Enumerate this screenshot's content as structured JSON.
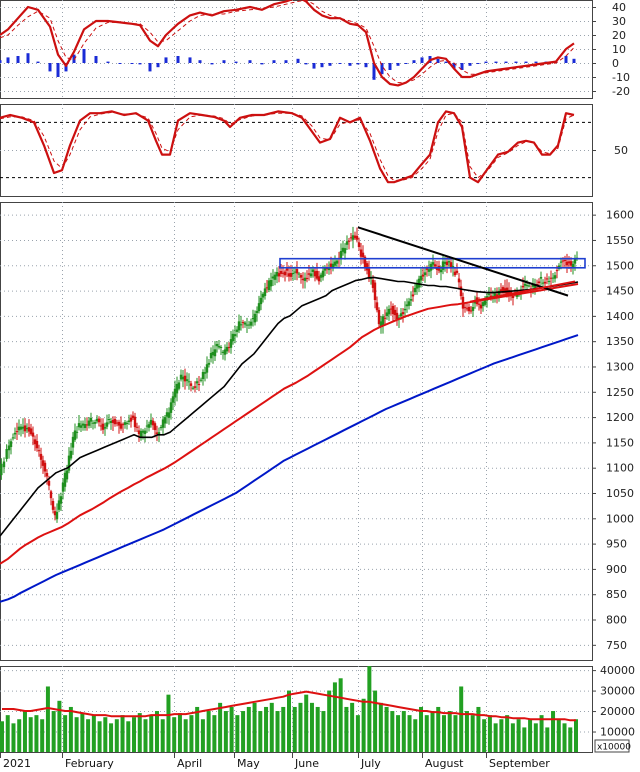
{
  "colors": {
    "background": "#ffffff",
    "grid": "#9aa3ad",
    "candle_up": "#1f8f1f",
    "candle_down": "#d01010",
    "ma_black": "#000000",
    "ma_red": "#dd1111",
    "ma_blue": "#0018c8",
    "resistance_box": "#1f3fd0",
    "trendline": "#000000",
    "volume_bar": "#22a022",
    "histogram": "#1a2bd6",
    "osc_line": "#cc1010"
  },
  "chart_data": [
    {
      "panel": "macd",
      "type": "line",
      "grid": true,
      "y_ticks": [
        "40",
        "30",
        "20",
        "10",
        "0",
        "-10",
        "-20"
      ],
      "ylim": [
        -25,
        45
      ],
      "x": [
        0,
        8,
        18,
        28,
        38,
        50,
        58,
        66,
        74,
        84,
        96,
        108,
        120,
        132,
        140,
        150,
        158,
        166,
        178,
        190,
        200,
        212,
        224,
        236,
        250,
        262,
        274,
        286,
        298,
        306,
        314,
        322,
        330,
        340,
        350,
        358,
        366,
        374,
        382,
        390,
        398,
        406,
        414,
        422,
        430,
        438,
        446,
        454,
        462,
        470,
        478,
        486,
        496,
        506,
        516,
        526,
        536,
        546,
        556,
        566,
        574
      ],
      "macd": [
        20,
        24,
        32,
        40,
        38,
        26,
        6,
        -2,
        8,
        24,
        30,
        30,
        29,
        28,
        27,
        16,
        12,
        20,
        28,
        34,
        36,
        34,
        37,
        38,
        40,
        38,
        42,
        44,
        47,
        44,
        38,
        34,
        32,
        32,
        28,
        27,
        22,
        0,
        -10,
        -15,
        -16,
        -14,
        -10,
        -4,
        2,
        4,
        3,
        -4,
        -10,
        -10,
        -8,
        -6,
        -5,
        -4,
        -3,
        -2,
        -1,
        0,
        1,
        10,
        14
      ],
      "signal": [
        18,
        20,
        27,
        33,
        37,
        32,
        16,
        4,
        2,
        14,
        25,
        29,
        29,
        28,
        28,
        22,
        15,
        16,
        23,
        30,
        34,
        35,
        35,
        37,
        38,
        39,
        40,
        42,
        44,
        45,
        42,
        37,
        34,
        32,
        30,
        28,
        25,
        12,
        -2,
        -10,
        -14,
        -14,
        -12,
        -8,
        -3,
        1,
        2,
        0,
        -5,
        -8,
        -8,
        -7,
        -6,
        -5,
        -4,
        -3,
        -2,
        -1,
        0,
        5,
        11
      ],
      "histogram": [
        2,
        4,
        5,
        7,
        1,
        -6,
        -10,
        -6,
        6,
        10,
        5,
        1,
        0,
        0,
        -1,
        -6,
        -3,
        4,
        5,
        4,
        2,
        -1,
        2,
        1,
        2,
        -1,
        2,
        2,
        3,
        -1,
        -4,
        -3,
        -2,
        0,
        -2,
        -1,
        -3,
        -12,
        -8,
        -5,
        -2,
        0,
        2,
        4,
        5,
        3,
        1,
        -4,
        -5,
        -2,
        0,
        1,
        1,
        1,
        1,
        1,
        1,
        1,
        1,
        5,
        3
      ]
    },
    {
      "panel": "stochastic",
      "type": "line",
      "grid": true,
      "y_ticks": [
        "50"
      ],
      "ylim": [
        0,
        100
      ],
      "reference_lines": [
        80,
        20
      ],
      "x": [
        0,
        10,
        22,
        34,
        44,
        54,
        62,
        70,
        80,
        90,
        100,
        112,
        124,
        136,
        148,
        156,
        162,
        170,
        178,
        190,
        202,
        214,
        224,
        230,
        240,
        252,
        264,
        278,
        292,
        302,
        312,
        320,
        330,
        340,
        350,
        360,
        370,
        380,
        388,
        394,
        402,
        412,
        422,
        430,
        438,
        446,
        454,
        462,
        470,
        478,
        488,
        498,
        508,
        518,
        526,
        534,
        542,
        550,
        558,
        566,
        574
      ],
      "k": [
        85,
        88,
        85,
        80,
        55,
        25,
        28,
        55,
        82,
        90,
        90,
        92,
        88,
        90,
        82,
        60,
        45,
        45,
        82,
        90,
        88,
        86,
        82,
        75,
        85,
        88,
        88,
        92,
        90,
        85,
        70,
        58,
        62,
        85,
        80,
        85,
        60,
        30,
        15,
        15,
        18,
        22,
        35,
        45,
        80,
        92,
        90,
        75,
        20,
        15,
        30,
        45,
        48,
        58,
        60,
        58,
        45,
        45,
        55,
        90,
        88
      ],
      "d": [
        84,
        86,
        86,
        82,
        65,
        38,
        30,
        45,
        72,
        86,
        89,
        91,
        89,
        89,
        85,
        68,
        52,
        48,
        72,
        86,
        88,
        87,
        84,
        78,
        83,
        87,
        88,
        90,
        90,
        87,
        76,
        63,
        61,
        78,
        81,
        83,
        68,
        40,
        22,
        17,
        17,
        20,
        30,
        40,
        70,
        88,
        90,
        80,
        32,
        20,
        28,
        42,
        47,
        55,
        59,
        58,
        48,
        46,
        52,
        84,
        88
      ]
    },
    {
      "panel": "price",
      "type": "line",
      "grid": true,
      "y_ticks": [
        "1600",
        "1550",
        "1500",
        "1450",
        "1400",
        "1350",
        "1300",
        "1250",
        "1200",
        "1150",
        "1100",
        "1050",
        "1000",
        "950",
        "900",
        "850",
        "800",
        "750"
      ],
      "ylim": [
        720,
        1625
      ],
      "x_labels": [
        "2021",
        "February",
        "April",
        "May",
        "June",
        "July",
        "August",
        "September"
      ],
      "x_label_positions": [
        0,
        62,
        174,
        234,
        292,
        358,
        422,
        486
      ],
      "close_x": [
        0,
        8,
        14,
        20,
        26,
        32,
        38,
        44,
        50,
        56,
        62,
        68,
        74,
        80,
        86,
        92,
        98,
        104,
        110,
        116,
        122,
        128,
        134,
        140,
        146,
        152,
        158,
        164,
        170,
        176,
        182,
        188,
        194,
        200,
        206,
        212,
        218,
        224,
        230,
        236,
        242,
        248,
        254,
        260,
        266,
        272,
        278,
        284,
        290,
        296,
        302,
        308,
        314,
        320,
        326,
        332,
        338,
        344,
        350,
        356,
        362,
        368,
        374,
        380,
        386,
        392,
        398,
        404,
        410,
        416,
        422,
        428,
        434,
        440,
        446,
        452,
        458,
        464,
        470,
        476,
        482,
        488,
        494,
        500,
        506,
        512,
        518,
        524,
        530,
        536,
        542,
        548,
        554,
        560,
        566,
        572,
        578
      ],
      "close": [
        1090,
        1130,
        1165,
        1180,
        1175,
        1170,
        1140,
        1110,
        1060,
        1000,
        1050,
        1100,
        1160,
        1185,
        1180,
        1195,
        1190,
        1180,
        1195,
        1190,
        1180,
        1190,
        1200,
        1160,
        1180,
        1190,
        1170,
        1190,
        1210,
        1250,
        1280,
        1270,
        1260,
        1270,
        1290,
        1320,
        1340,
        1330,
        1340,
        1370,
        1390,
        1380,
        1390,
        1420,
        1450,
        1470,
        1480,
        1490,
        1480,
        1490,
        1470,
        1480,
        1490,
        1470,
        1490,
        1500,
        1510,
        1530,
        1550,
        1560,
        1520,
        1490,
        1460,
        1380,
        1400,
        1420,
        1390,
        1410,
        1430,
        1450,
        1480,
        1490,
        1500,
        1490,
        1510,
        1500,
        1480,
        1420,
        1410,
        1430,
        1420,
        1440,
        1440,
        1450,
        1450,
        1440,
        1440,
        1460,
        1460,
        1460,
        1470,
        1470,
        1480,
        1500,
        1510,
        1500,
        1510
      ],
      "ma_black": [
        965,
        985,
        1000,
        1015,
        1030,
        1045,
        1060,
        1070,
        1080,
        1090,
        1095,
        1100,
        1110,
        1120,
        1125,
        1130,
        1135,
        1140,
        1145,
        1150,
        1155,
        1160,
        1165,
        1160,
        1160,
        1160,
        1165,
        1165,
        1170,
        1180,
        1190,
        1200,
        1210,
        1220,
        1230,
        1240,
        1250,
        1260,
        1275,
        1290,
        1305,
        1315,
        1325,
        1340,
        1355,
        1370,
        1385,
        1395,
        1400,
        1410,
        1420,
        1425,
        1430,
        1435,
        1440,
        1450,
        1455,
        1460,
        1465,
        1470,
        1472,
        1475,
        1476,
        1474,
        1472,
        1470,
        1468,
        1468,
        1466,
        1464,
        1462,
        1460,
        1460,
        1458,
        1458,
        1456,
        1454,
        1452,
        1450,
        1448,
        1447,
        1446,
        1446,
        1447,
        1448,
        1449,
        1450,
        1451,
        1452,
        1454,
        1455,
        1457,
        1459,
        1461,
        1463,
        1465,
        1467
      ],
      "ma_red": [
        910,
        920,
        930,
        940,
        948,
        955,
        962,
        968,
        973,
        978,
        983,
        990,
        998,
        1006,
        1012,
        1018,
        1025,
        1032,
        1040,
        1047,
        1054,
        1060,
        1067,
        1073,
        1080,
        1086,
        1092,
        1098,
        1105,
        1112,
        1120,
        1128,
        1136,
        1144,
        1152,
        1160,
        1168,
        1176,
        1184,
        1192,
        1200,
        1208,
        1216,
        1224,
        1232,
        1240,
        1248,
        1256,
        1262,
        1268,
        1275,
        1282,
        1290,
        1298,
        1306,
        1314,
        1322,
        1330,
        1338,
        1348,
        1358,
        1365,
        1372,
        1378,
        1383,
        1388,
        1393,
        1398,
        1402,
        1406,
        1410,
        1414,
        1416,
        1418,
        1420,
        1422,
        1423,
        1425,
        1427,
        1429,
        1431,
        1433,
        1435,
        1437,
        1439,
        1441,
        1443,
        1445,
        1447,
        1449,
        1451,
        1453,
        1455,
        1457,
        1459,
        1461,
        1463
      ],
      "ma_blue": [
        835,
        840,
        845,
        852,
        858,
        864,
        870,
        876,
        882,
        888,
        893,
        898,
        903,
        908,
        913,
        918,
        923,
        928,
        933,
        938,
        943,
        948,
        953,
        958,
        963,
        968,
        973,
        978,
        984,
        990,
        996,
        1002,
        1008,
        1014,
        1020,
        1026,
        1032,
        1038,
        1044,
        1050,
        1058,
        1066,
        1074,
        1082,
        1090,
        1098,
        1106,
        1114,
        1120,
        1126,
        1132,
        1138,
        1144,
        1150,
        1156,
        1162,
        1168,
        1174,
        1180,
        1186,
        1192,
        1198,
        1204,
        1210,
        1216,
        1221,
        1226,
        1231,
        1236,
        1241,
        1246,
        1251,
        1256,
        1261,
        1266,
        1271,
        1276,
        1281,
        1286,
        1291,
        1296,
        1301,
        1306,
        1310,
        1314,
        1318,
        1322,
        1326,
        1330,
        1334,
        1338,
        1342,
        1346,
        1350,
        1354,
        1358,
        1362
      ],
      "resistance_box": {
        "x_start": 280,
        "x_end": 585,
        "y_low": 1495,
        "y_high": 1513
      },
      "trendlines": [
        {
          "x1": 358,
          "y1": 1575,
          "x2": 568,
          "y2": 1440
        },
        {
          "x1": 470,
          "y1": 1428,
          "x2": 575,
          "y2": 1468
        }
      ]
    },
    {
      "panel": "volume",
      "type": "bar",
      "grid": true,
      "y_ticks": [
        "40000",
        "30000",
        "20000",
        "10000"
      ],
      "ylim": [
        0,
        42000
      ],
      "unit_label": "x10000",
      "values": [
        15000,
        18000,
        14000,
        16000,
        20000,
        17000,
        18000,
        16000,
        32000,
        20000,
        25000,
        18000,
        22000,
        17000,
        19000,
        16000,
        18000,
        15000,
        17000,
        14000,
        16000,
        18000,
        15000,
        17000,
        19000,
        16000,
        18000,
        20000,
        16000,
        28000,
        17000,
        19000,
        16000,
        18000,
        22000,
        16000,
        20000,
        18000,
        24000,
        20000,
        22000,
        18000,
        20000,
        22000,
        24000,
        20000,
        22000,
        24000,
        20000,
        22000,
        30000,
        22000,
        24000,
        28000,
        24000,
        22000,
        20000,
        30000,
        34000,
        36000,
        22000,
        24000,
        18000,
        26000,
        42000,
        30000,
        24000,
        22000,
        20000,
        18000,
        20000,
        18000,
        16000,
        22000,
        18000,
        20000,
        22000,
        18000,
        20000,
        18000,
        32000,
        20000,
        18000,
        22000,
        16000,
        18000,
        14000,
        16000,
        18000,
        14000,
        16000,
        12000,
        16000,
        14000,
        18000,
        12000,
        20000,
        16000,
        14000,
        12000,
        16000
      ],
      "ma": [
        21000,
        21000,
        21000,
        20500,
        20000,
        20000,
        20500,
        21000,
        21500,
        21000,
        20500,
        20000,
        20000,
        19500,
        19000,
        18500,
        18000,
        18000,
        18000,
        17500,
        17500,
        17500,
        17500,
        17500,
        17500,
        17500,
        18000,
        18000,
        18000,
        18000,
        18500,
        18500,
        18500,
        19000,
        19500,
        20000,
        20500,
        21000,
        21500,
        22000,
        22500,
        23000,
        23500,
        24000,
        24500,
        25000,
        25500,
        26000,
        26500,
        27000,
        28000,
        28500,
        29000,
        29500,
        29000,
        28500,
        28000,
        27500,
        27000,
        26500,
        26000,
        25500,
        25000,
        24500,
        24500,
        24000,
        23500,
        23000,
        22500,
        22000,
        21500,
        21000,
        20500,
        20000,
        20000,
        19500,
        19500,
        19000,
        19000,
        19000,
        18500,
        18500,
        18500,
        18000,
        18000,
        17500,
        17500,
        17000,
        17000,
        16500,
        16500,
        16500,
        16000,
        16000,
        16000,
        16000,
        16000,
        16000,
        16000,
        15500,
        15500
      ]
    }
  ]
}
